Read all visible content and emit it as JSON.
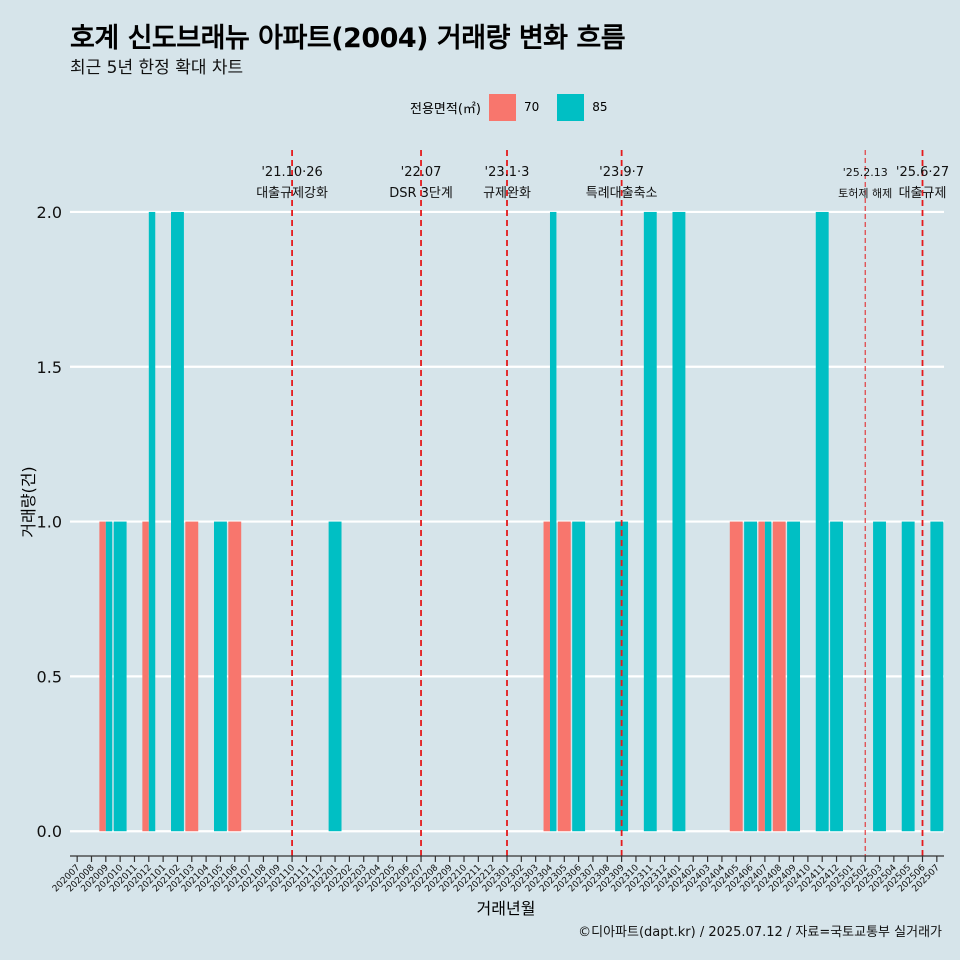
{
  "chart_data": {
    "type": "bar",
    "title": "호계 신도브래뉴 아파트(2004) 거래량 변화 흐름",
    "subtitle": "최근 5년 한정 확대 차트",
    "xlabel": "거래년월",
    "ylabel": "거래량(건)",
    "ylim": [
      -0.08,
      2.2
    ],
    "yticks": [
      0.0,
      0.5,
      1.0,
      1.5,
      2.0
    ],
    "ytick_labels": [
      "0.0",
      "0.5",
      "1.0",
      "1.5",
      "2.0"
    ],
    "grid": true,
    "legend_title": "전용면적(㎡)",
    "legend_position": "top",
    "categories": [
      "202007",
      "202008",
      "202009",
      "202010",
      "202011",
      "202012",
      "202101",
      "202102",
      "202103",
      "202104",
      "202105",
      "202106",
      "202107",
      "202108",
      "202109",
      "202110",
      "202111",
      "202112",
      "202201",
      "202202",
      "202203",
      "202204",
      "202205",
      "202206",
      "202207",
      "202208",
      "202209",
      "202210",
      "202211",
      "202212",
      "202301",
      "202302",
      "202303",
      "202304",
      "202305",
      "202306",
      "202307",
      "202308",
      "202309",
      "202310",
      "202311",
      "202312",
      "202401",
      "202402",
      "202403",
      "202404",
      "202405",
      "202406",
      "202407",
      "202408",
      "202409",
      "202410",
      "202411",
      "202412",
      "202501",
      "202502",
      "202503",
      "202504",
      "202505",
      "202506",
      "202507"
    ],
    "series": [
      {
        "name": "70",
        "color": "#f8766d",
        "values": [
          0,
          0,
          1,
          0,
          0,
          1,
          0,
          0,
          1,
          0,
          0,
          1,
          0,
          0,
          0,
          0,
          0,
          0,
          0,
          0,
          0,
          0,
          0,
          0,
          0,
          0,
          0,
          0,
          0,
          0,
          0,
          0,
          0,
          1,
          1,
          0,
          0,
          0,
          0,
          0,
          0,
          0,
          0,
          0,
          0,
          0,
          1,
          0,
          1,
          1,
          0,
          0,
          0,
          0,
          0,
          0,
          0,
          0,
          0,
          0,
          0
        ]
      },
      {
        "name": "85",
        "color": "#00bfc4",
        "values": [
          0,
          0,
          1,
          1,
          0,
          2,
          0,
          2,
          0,
          0,
          1,
          0,
          0,
          0,
          0,
          0,
          0,
          0,
          1,
          0,
          0,
          0,
          0,
          0,
          0,
          0,
          0,
          0,
          0,
          0,
          0,
          0,
          0,
          2,
          0,
          1,
          0,
          0,
          1,
          0,
          2,
          0,
          2,
          0,
          0,
          0,
          0,
          1,
          1,
          0,
          1,
          0,
          2,
          1,
          0,
          0,
          1,
          0,
          1,
          0,
          1
        ]
      }
    ],
    "events": [
      {
        "month": "202110",
        "line1": "'21.10·26",
        "line2": "대출규제강화",
        "style": "dashed"
      },
      {
        "month": "202207",
        "line1": "'22.07",
        "line2": "DSR 3단계",
        "style": "dashed"
      },
      {
        "month": "202301",
        "line1": "'23.1·3",
        "line2": "규제완화",
        "style": "dashed"
      },
      {
        "month": "202309",
        "line1": "'23.9·7",
        "line2": "특례대출축소",
        "style": "dashed"
      },
      {
        "month": "202502",
        "line1": "'25.2.13",
        "line2": "토허제 해제",
        "style": "dashed-thin"
      },
      {
        "month": "202506",
        "line1": "'25.6·27",
        "line2": "대출규제",
        "style": "dashed"
      }
    ],
    "event_line_color": "#e41a1c"
  },
  "caption": "©디아파트(dapt.kr) / 2025.07.12 / 자료=국토교통부 실거래가"
}
